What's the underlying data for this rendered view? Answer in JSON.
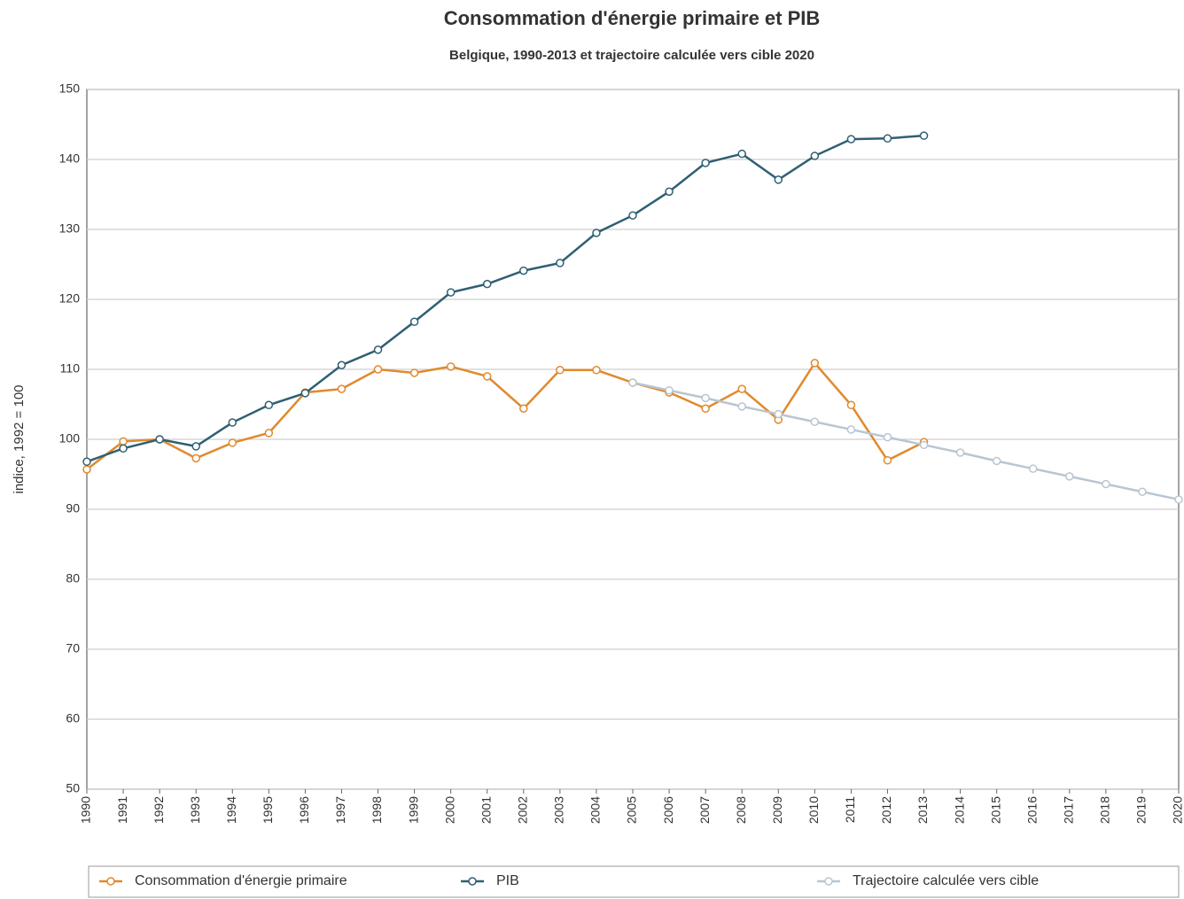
{
  "chart_data": {
    "type": "line",
    "title": "Consommation d'énergie primaire et PIB",
    "subtitle": "Belgique, 1990-2013 et trajectoire calculée vers cible 2020",
    "y_label": "indice, 1992 = 100",
    "x": [
      1990,
      1991,
      1992,
      1993,
      1994,
      1995,
      1996,
      1997,
      1998,
      1999,
      2000,
      2001,
      2002,
      2003,
      2004,
      2005,
      2006,
      2007,
      2008,
      2009,
      2010,
      2011,
      2012,
      2013,
      2014,
      2015,
      2016,
      2017,
      2018,
      2019,
      2020
    ],
    "series": [
      {
        "name": "Consommation d'énergie primaire",
        "color": "#e08a2e",
        "values": [
          95.7,
          99.7,
          100,
          97.3,
          99.5,
          100.9,
          106.7,
          107.2,
          110,
          109.5,
          110.4,
          109,
          104.4,
          109.9,
          109.9,
          108.1,
          106.7,
          104.4,
          107.2,
          102.8,
          110.9,
          104.9,
          97,
          99.6,
          null,
          null,
          null,
          null,
          null,
          null,
          null
        ]
      },
      {
        "name": "PIB",
        "color": "#2f5f73",
        "values": [
          96.8,
          98.7,
          100,
          99,
          102.4,
          104.9,
          106.6,
          110.6,
          112.8,
          116.8,
          121,
          122.2,
          124.1,
          125.2,
          129.5,
          132,
          135.4,
          139.5,
          140.8,
          137.1,
          140.5,
          142.9,
          143,
          143.4,
          null,
          null,
          null,
          null,
          null,
          null,
          null
        ]
      },
      {
        "name": "Trajectoire calculée vers cible",
        "color": "#b8c6d3",
        "values": [
          null,
          null,
          null,
          null,
          null,
          null,
          null,
          null,
          null,
          null,
          null,
          null,
          null,
          null,
          null,
          108.1,
          107,
          105.9,
          104.7,
          103.6,
          102.5,
          101.4,
          100.3,
          99.2,
          98.1,
          96.9,
          95.8,
          94.7,
          93.6,
          92.5,
          91.4
        ]
      }
    ],
    "xlim": [
      1990,
      2020
    ],
    "xticks": [
      1990,
      1991,
      1992,
      1993,
      1994,
      1995,
      1996,
      1997,
      1998,
      1999,
      2000,
      2001,
      2002,
      2003,
      2004,
      2005,
      2006,
      2007,
      2008,
      2009,
      2010,
      2011,
      2012,
      2013,
      2014,
      2015,
      2016,
      2017,
      2018,
      2019,
      2020
    ],
    "ylim": [
      50,
      150
    ],
    "yticks": [
      50,
      60,
      70,
      80,
      90,
      100,
      110,
      120,
      130,
      140,
      150
    ],
    "grid": true,
    "legend": "bottom"
  }
}
